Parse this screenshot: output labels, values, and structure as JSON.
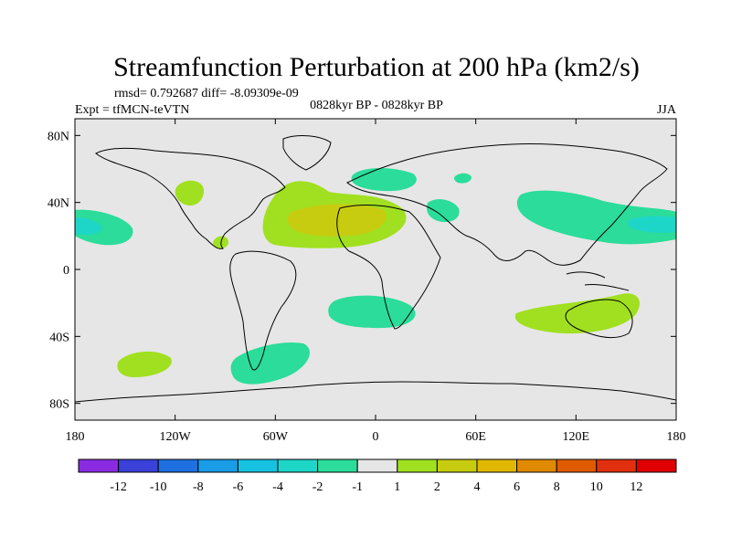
{
  "chart_data": {
    "type": "contour-map",
    "title": "Streamfunction Perturbation at 200 hPa (km2/s)",
    "subtitle_left": "rmsd= 0.792687 diff= -8.09309e-09",
    "expt_label": "Expt = tfMCN-teVTN",
    "center_label": "0828kyr BP - 0828kyr BP",
    "season_label": "JJA",
    "x_ticks": [
      "180",
      "120W",
      "60W",
      "0",
      "60E",
      "120E",
      "180"
    ],
    "y_ticks": [
      "80N",
      "40N",
      "0",
      "40S",
      "80S"
    ],
    "xlim": [
      -180,
      180
    ],
    "ylim": [
      -90,
      90
    ],
    "colorbar_labels": [
      "-12",
      "-10",
      "-8",
      "-6",
      "-4",
      "-2",
      "-1",
      "1",
      "2",
      "4",
      "6",
      "8",
      "10",
      "12"
    ],
    "colorbar_colors": [
      "#8a2be2",
      "#3a40d8",
      "#1e6fe0",
      "#1a9ce6",
      "#17c2e0",
      "#1ed6c8",
      "#2bdc9a",
      "#e6e6e6",
      "#a0e020",
      "#c8cc10",
      "#e0b800",
      "#e08a00",
      "#e05a00",
      "#e03010",
      "#e00000"
    ],
    "map_background": "#e6e6e6"
  }
}
